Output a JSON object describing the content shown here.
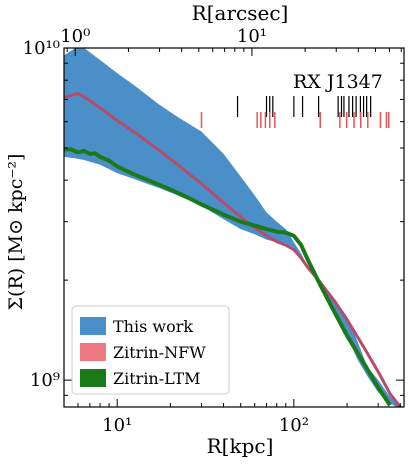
{
  "chart_data": {
    "type": "line",
    "annotation": "RX J1347",
    "xlabel": "R[kpc]",
    "ylabel": "Σ(R) [M⊙ kpc⁻²]",
    "xlabel_top": "R[arcsec]",
    "xscale": "log",
    "yscale": "log",
    "xlim": [
      5,
      420
    ],
    "ylim": [
      830000000.0,
      10000000000.0
    ],
    "x_ticks": [
      {
        "value": 10,
        "label": "10¹"
      },
      {
        "value": 100,
        "label": "10²"
      }
    ],
    "x_ticks_top": [
      {
        "arcsec": 1,
        "label": "10⁰"
      },
      {
        "arcsec": 10,
        "label": "10¹"
      }
    ],
    "y_ticks": [
      {
        "value": 1000000000.0,
        "label": "10⁹"
      },
      {
        "value": 10000000000.0,
        "label": "10¹⁰"
      }
    ],
    "kpc_per_arcsec": 5.79,
    "legend_position": "lower-left",
    "series": [
      {
        "name": "This work",
        "kind": "band",
        "color": "#4a8fc8",
        "x": [
          5,
          5.8,
          6.5,
          8,
          10,
          13,
          17,
          22,
          30,
          40,
          50,
          60,
          70,
          80,
          90,
          100,
          110,
          120,
          130,
          150,
          170,
          200,
          230,
          260,
          300,
          340,
          380,
          420
        ],
        "lower": [
          4700000000.0,
          4650000000.0,
          4600000000.0,
          4450000000.0,
          4200000000.0,
          4000000000.0,
          3800000000.0,
          3600000000.0,
          3350000000.0,
          3050000000.0,
          2850000000.0,
          2750000000.0,
          2650000000.0,
          2600000000.0,
          2580000000.0,
          2500000000.0,
          2350000000.0,
          2200000000.0,
          2050000000.0,
          1850000000.0,
          1600000000.0,
          1350000000.0,
          1150000000.0,
          1030000000.0,
          920000000.0,
          860000000.0,
          830000000.0,
          830000000.0
        ],
        "upper": [
          9500000000.0,
          10000000000.0,
          10000000000.0,
          9200000000.0,
          8400000000.0,
          7600000000.0,
          6800000000.0,
          6200000000.0,
          5600000000.0,
          4800000000.0,
          4100000000.0,
          3600000000.0,
          3200000000.0,
          3000000000.0,
          2850000000.0,
          2600000000.0,
          2400000000.0,
          2200000000.0,
          2050000000.0,
          1900000000.0,
          1750000000.0,
          1550000000.0,
          1300000000.0,
          1100000000.0,
          1000000000.0,
          910000000.0,
          850000000.0,
          830000000.0
        ]
      },
      {
        "name": "Zitrin-NFW",
        "kind": "line",
        "color": "#b84a6a",
        "x": [
          5,
          6,
          7,
          8,
          10,
          13,
          17,
          22,
          30,
          40,
          50,
          60,
          70,
          80,
          90,
          100,
          110,
          120,
          140,
          170,
          200,
          250,
          300,
          350,
          400
        ],
        "values": [
          7100000000.0,
          7300000000.0,
          6950000000.0,
          6600000000.0,
          6050000000.0,
          5500000000.0,
          4950000000.0,
          4450000000.0,
          3900000000.0,
          3420000000.0,
          3100000000.0,
          2880000000.0,
          2720000000.0,
          2610000000.0,
          2550000000.0,
          2470000000.0,
          2330000000.0,
          2180000000.0,
          1980000000.0,
          1730000000.0,
          1520000000.0,
          1250000000.0,
          1060000000.0,
          910000000.0,
          830000000.0
        ]
      },
      {
        "name": "Zitrin-LTM",
        "kind": "line",
        "color": "#1a7a1a",
        "x": [
          5,
          5.5,
          6,
          6.5,
          7,
          7.5,
          8,
          9,
          10,
          12,
          15,
          20,
          25,
          30,
          40,
          50,
          60,
          70,
          80,
          90,
          100,
          110,
          120,
          140,
          170,
          200,
          250,
          300,
          350
        ],
        "values": [
          4950000000.0,
          4950000000.0,
          4850000000.0,
          4900000000.0,
          4800000000.0,
          4820000000.0,
          4700000000.0,
          4580000000.0,
          4400000000.0,
          4200000000.0,
          4000000000.0,
          3750000000.0,
          3550000000.0,
          3380000000.0,
          3150000000.0,
          3000000000.0,
          2920000000.0,
          2850000000.0,
          2800000000.0,
          2780000000.0,
          2720000000.0,
          2550000000.0,
          2300000000.0,
          1950000000.0,
          1600000000.0,
          1360000000.0,
          1120000000.0,
          950000000.0,
          840000000.0
        ]
      }
    ],
    "markers": {
      "black_x": [
        48,
        70,
        73,
        76,
        100,
        112,
        138,
        178,
        186,
        192,
        205,
        215,
        225,
        238,
        248,
        258,
        272
      ],
      "red_x": [
        30,
        62,
        65,
        69,
        73,
        78,
        141,
        182,
        199,
        219,
        239,
        262,
        309,
        334,
        344
      ]
    }
  }
}
